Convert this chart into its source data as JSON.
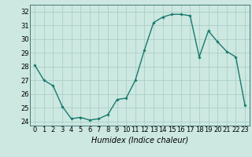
{
  "x": [
    0,
    1,
    2,
    3,
    4,
    5,
    6,
    7,
    8,
    9,
    10,
    11,
    12,
    13,
    14,
    15,
    16,
    17,
    18,
    19,
    20,
    21,
    22,
    23
  ],
  "y": [
    28.1,
    27.0,
    26.6,
    25.1,
    24.2,
    24.3,
    24.1,
    24.2,
    24.5,
    25.6,
    25.7,
    27.0,
    29.2,
    31.2,
    31.6,
    31.8,
    31.8,
    31.7,
    28.7,
    30.6,
    29.8,
    29.1,
    28.7,
    25.2
  ],
  "line_color": "#1a7a6e",
  "marker": "D",
  "marker_size": 1.8,
  "line_width": 1.0,
  "xlabel": "Humidex (Indice chaleur)",
  "xlabel_fontsize": 7,
  "ylim": [
    23.7,
    32.5
  ],
  "xlim": [
    -0.5,
    23.5
  ],
  "yticks": [
    24,
    25,
    26,
    27,
    28,
    29,
    30,
    31,
    32
  ],
  "xticks": [
    0,
    1,
    2,
    3,
    4,
    5,
    6,
    7,
    8,
    9,
    10,
    11,
    12,
    13,
    14,
    15,
    16,
    17,
    18,
    19,
    20,
    21,
    22,
    23
  ],
  "bg_color": "#cce8e0",
  "grid_color": "#aacfc8",
  "tick_fontsize": 6,
  "spine_color": "#336666"
}
